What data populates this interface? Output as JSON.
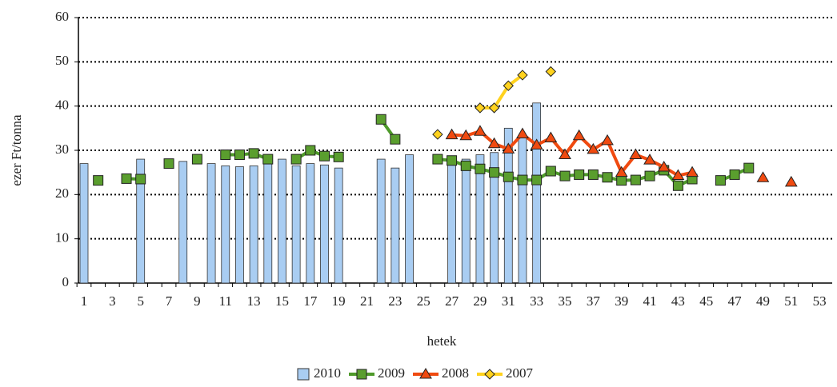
{
  "chart_data": {
    "type": "bar-line",
    "x_label": "hetek",
    "y_label": "ezer Ft/tonna",
    "categories": [
      1,
      null,
      3,
      null,
      5,
      null,
      7,
      null,
      9,
      null,
      11,
      null,
      13,
      null,
      15,
      null,
      17,
      null,
      19,
      null,
      21,
      null,
      23,
      null,
      25,
      null,
      27,
      null,
      29,
      null,
      31,
      null,
      33,
      null,
      35,
      null,
      37,
      null,
      39,
      null,
      41,
      null,
      43,
      null,
      45,
      null,
      47,
      null,
      49,
      null,
      51,
      null,
      53
    ],
    "ylim": [
      0,
      60
    ],
    "yticks": [
      0,
      10,
      20,
      30,
      40,
      50,
      60
    ],
    "grid": true,
    "legend": "bottom",
    "series": [
      {
        "name": "2010",
        "type": "bar",
        "color": "#a9cdf2",
        "values": [
          27,
          null,
          null,
          null,
          28,
          null,
          null,
          27.5,
          null,
          27,
          26.5,
          26.3,
          26.5,
          27.5,
          28,
          26.5,
          27,
          26.7,
          26,
          null,
          null,
          28,
          26,
          29,
          null,
          null,
          28,
          28,
          29,
          29.5,
          35,
          33,
          40.7,
          null,
          null,
          null,
          null,
          null,
          null,
          null,
          null,
          null,
          null,
          null,
          null,
          null,
          null,
          null,
          null,
          null,
          null,
          null,
          null
        ]
      },
      {
        "name": "2009",
        "type": "line",
        "color": "#4e9a2a",
        "marker_color": "#5a9e2e",
        "values": [
          null,
          23.2,
          null,
          23.6,
          23.5,
          null,
          27,
          null,
          28,
          null,
          29,
          29,
          29.3,
          28,
          null,
          28,
          30,
          28.7,
          28.5,
          null,
          null,
          37,
          32.5,
          null,
          null,
          28,
          27.7,
          26.5,
          25.8,
          25,
          24,
          23.3,
          23.3,
          25.3,
          24.2,
          24.5,
          24.5,
          23.9,
          23.2,
          23.3,
          24.2,
          25.5,
          22,
          23.5,
          null,
          23.2,
          24.5,
          26,
          null,
          null,
          null,
          null,
          null
        ]
      },
      {
        "name": "2008",
        "type": "line",
        "color": "#f04a10",
        "marker_color": "#f04a10",
        "values": [
          null,
          null,
          null,
          null,
          null,
          null,
          null,
          null,
          null,
          null,
          null,
          null,
          null,
          null,
          null,
          null,
          null,
          null,
          null,
          null,
          null,
          null,
          null,
          null,
          null,
          null,
          33.5,
          33.3,
          34.3,
          31.5,
          30.3,
          33.7,
          31.2,
          32.8,
          29,
          33.3,
          30.2,
          32.2,
          25,
          29,
          27.8,
          26.2,
          24.3,
          25,
          null,
          null,
          null,
          null,
          23.8,
          null,
          22.8,
          null,
          null
        ]
      },
      {
        "name": "2007",
        "type": "line",
        "color": "#ffd21e",
        "marker_color": "#ffd21e",
        "values": [
          null,
          null,
          null,
          null,
          null,
          null,
          null,
          null,
          null,
          null,
          null,
          null,
          null,
          null,
          null,
          null,
          null,
          null,
          null,
          null,
          null,
          null,
          null,
          null,
          null,
          33.6,
          null,
          null,
          39.6,
          39.6,
          44.6,
          47,
          null,
          47.8,
          null,
          null,
          null,
          null,
          null,
          null,
          null,
          null,
          null,
          null,
          null,
          null,
          null,
          null,
          null,
          null,
          null,
          null,
          null
        ]
      }
    ]
  }
}
